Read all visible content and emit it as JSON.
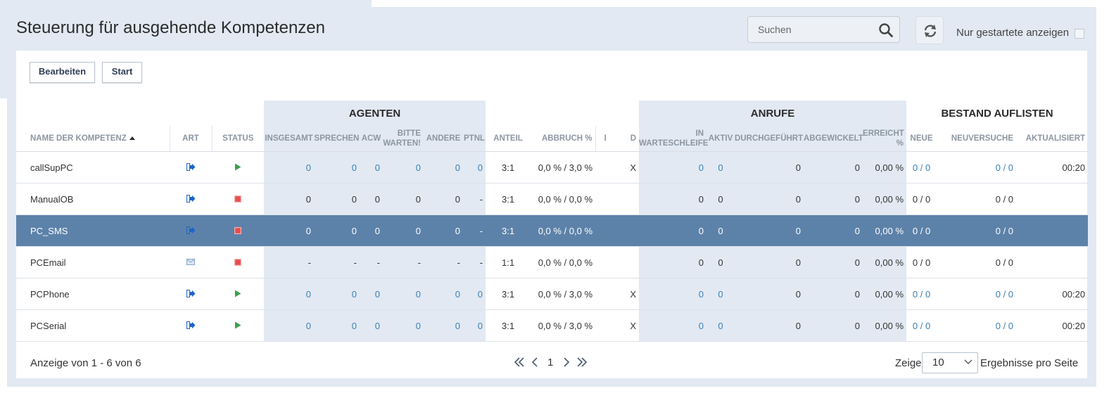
{
  "header": {
    "title": "Steuerung für ausgehende Kompetenzen",
    "search_placeholder": "Suchen",
    "only_started_label": "Nur gestartete anzeigen"
  },
  "toolbar": {
    "edit_label": "Bearbeiten",
    "start_label": "Start"
  },
  "table": {
    "groups": {
      "agents": "AGENTEN",
      "calls": "ANRUFE",
      "inventory": "BESTAND AUFLISTEN"
    },
    "columns": {
      "name": "NAME DER KOMPETENZ",
      "type": "ART",
      "status": "STATUS",
      "total": "INSGESAMT",
      "talking": "SPRECHEN",
      "acw": "ACW",
      "please_wait_1": "BITTE",
      "please_wait_2": "WARTEN!",
      "other": "ANDERE",
      "ptnl": "PTNL",
      "ratio": "ANTEIL",
      "abandon": "ABBRUCH %",
      "i": "I",
      "d": "D",
      "queue_1": "IN",
      "queue_2": "WARTESCHLEIFE",
      "active": "AKTIV",
      "completed": "DURCHGEFÜHRT",
      "handled": "ABGEWICKELT",
      "reached_1": "ERREICHT",
      "reached_2": "%",
      "new": "NEUE",
      "retry": "NEUVERSUCHE",
      "updated": "AKTUALISIERT"
    },
    "rows": [
      {
        "name": "callSupPC",
        "type_icon": "phone-out-icon",
        "status_icon": "play-icon",
        "status_color": "#3aa14a",
        "total": "0",
        "talking": "0",
        "acw": "0",
        "wait": "0",
        "other": "0",
        "ptnl": "0",
        "ratio": "3:1",
        "abandon": "0,0 % / 3,0 %",
        "i": "",
        "d": "X",
        "queue": "0",
        "active": "0",
        "completed": "0",
        "handled": "0",
        "reached": "0,00 %",
        "new": "0 / 0",
        "retry": "0 / 0",
        "updated": "00:20",
        "linked": true,
        "selected": false
      },
      {
        "name": "ManualOB",
        "type_icon": "phone-out-icon",
        "status_icon": "stop-icon",
        "status_color": "#e84c4c",
        "total": "0",
        "talking": "0",
        "acw": "0",
        "wait": "0",
        "other": "0",
        "ptnl": "-",
        "ratio": "3:1",
        "abandon": "0,0 % / 0,0 %",
        "i": "",
        "d": "",
        "queue": "0",
        "active": "0",
        "completed": "0",
        "handled": "0",
        "reached": "0,00 %",
        "new": "0 / 0",
        "retry": "0 / 0",
        "updated": "",
        "linked": false,
        "selected": false
      },
      {
        "name": "PC_SMS",
        "type_icon": "phone-out-icon",
        "status_icon": "stop-icon",
        "status_color": "#e84c4c",
        "total": "0",
        "talking": "0",
        "acw": "0",
        "wait": "0",
        "other": "0",
        "ptnl": "-",
        "ratio": "3:1",
        "abandon": "0,0 % / 0,0 %",
        "i": "",
        "d": "",
        "queue": "0",
        "active": "0",
        "completed": "0",
        "handled": "0",
        "reached": "0,00 %",
        "new": "0 / 0",
        "retry": "0 / 0",
        "updated": "",
        "linked": false,
        "selected": true
      },
      {
        "name": "PCEmail",
        "type_icon": "email-icon",
        "status_icon": "stop-icon",
        "status_color": "#e84c4c",
        "total": "-",
        "talking": "-",
        "acw": "-",
        "wait": "-",
        "other": "-",
        "ptnl": "-",
        "ratio": "1:1",
        "abandon": "0,0 % / 0,0 %",
        "i": "",
        "d": "",
        "queue": "0",
        "active": "0",
        "completed": "0",
        "handled": "0",
        "reached": "0,00 %",
        "new": "0 / 0",
        "retry": "0 / 0",
        "updated": "",
        "linked": false,
        "selected": false
      },
      {
        "name": "PCPhone",
        "type_icon": "phone-out-icon",
        "status_icon": "play-icon",
        "status_color": "#3aa14a",
        "total": "0",
        "talking": "0",
        "acw": "0",
        "wait": "0",
        "other": "0",
        "ptnl": "0",
        "ratio": "3:1",
        "abandon": "0,0 % / 3,0 %",
        "i": "",
        "d": "X",
        "queue": "0",
        "active": "0",
        "completed": "0",
        "handled": "0",
        "reached": "0,00 %",
        "new": "0 / 0",
        "retry": "0 / 0",
        "updated": "00:20",
        "linked": true,
        "selected": false
      },
      {
        "name": "PCSerial",
        "type_icon": "phone-out-icon",
        "status_icon": "play-icon",
        "status_color": "#3aa14a",
        "total": "0",
        "talking": "0",
        "acw": "0",
        "wait": "0",
        "other": "0",
        "ptnl": "0",
        "ratio": "3:1",
        "abandon": "0,0 % / 3,0 %",
        "i": "",
        "d": "X",
        "queue": "0",
        "active": "0",
        "completed": "0",
        "handled": "0",
        "reached": "0,00 %",
        "new": "0 / 0",
        "retry": "0 / 0",
        "updated": "00:20",
        "linked": true,
        "selected": false
      }
    ]
  },
  "pager": {
    "summary": "Anzeige von 1 - 6 von 6",
    "current_page": "1",
    "show_label": "Zeige",
    "per_page_value": "10",
    "results_label": "Ergebnisse pro Seite"
  },
  "colors": {
    "background_shade": "#e2e9f2",
    "selected_row": "#5d82a9",
    "link": "#3b7fb6",
    "header_text": "#8c96a1",
    "play_green": "#3aa14a",
    "stop_red": "#e84c4c",
    "icon_blue": "#1e64c8"
  }
}
